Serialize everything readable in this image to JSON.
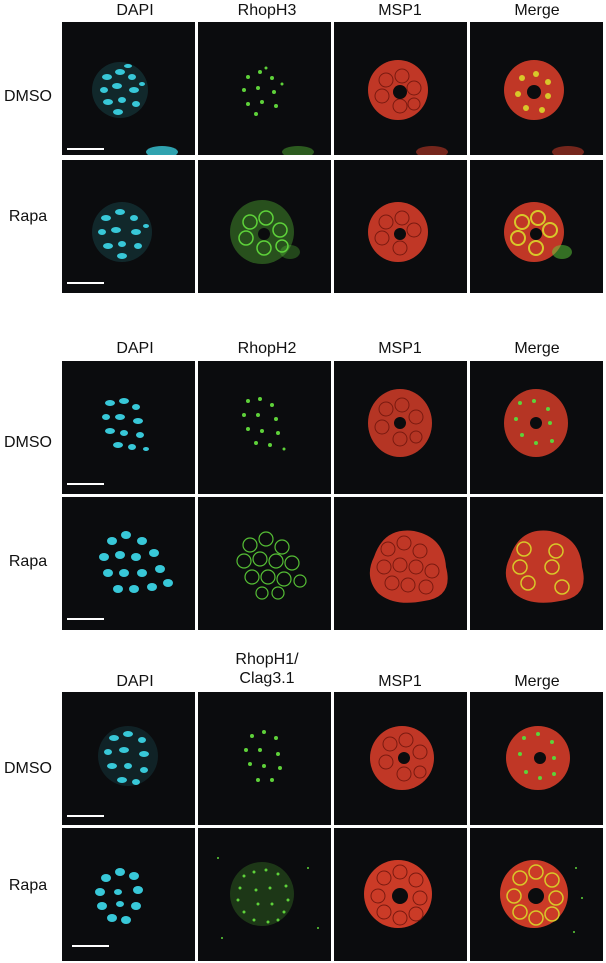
{
  "blocks": [
    {
      "columns": [
        "DAPI",
        "RhopH3",
        "MSP1",
        "Merge"
      ],
      "rows": [
        "DMSO",
        "Rapa"
      ]
    },
    {
      "columns": [
        "DAPI",
        "RhopH2",
        "MSP1",
        "Merge"
      ],
      "rows": [
        "DMSO",
        "Rapa"
      ]
    },
    {
      "columns": [
        "DAPI",
        "RhopH1/\nClag3.1",
        "MSP1",
        "Merge"
      ],
      "rows": [
        "DMSO",
        "Rapa"
      ]
    }
  ],
  "channel_colors": {
    "dapi": "#38c8d8",
    "rhoph": "#5ed23a",
    "msp1": "#e0402a",
    "merge_overlap": "#d8c82a",
    "background": "#0b0c0e"
  }
}
